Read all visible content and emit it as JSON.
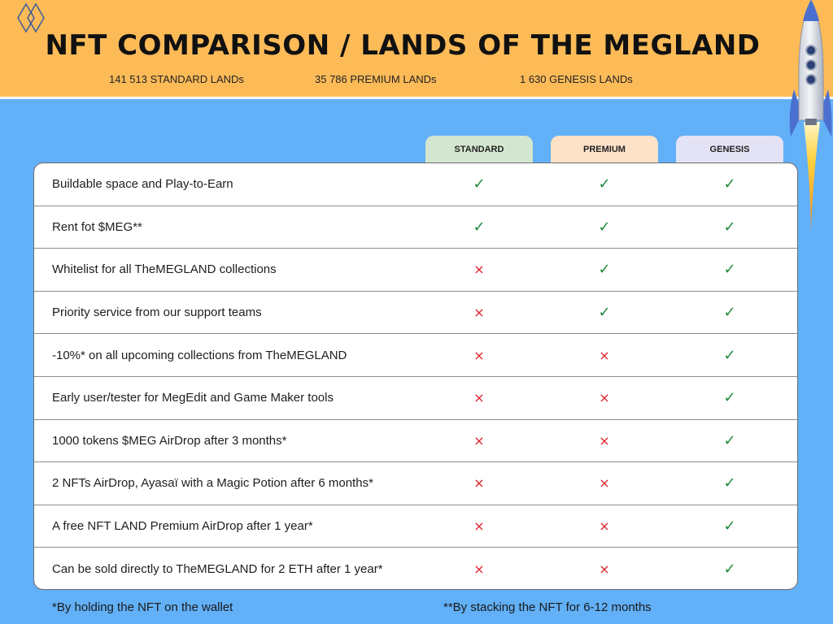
{
  "header": {
    "title": "NFT COMPARISON / LANDS OF THE MEGLAND",
    "counts": {
      "standard": "141 513 STANDARD LANDs",
      "premium": "35 786 PREMIUM LANDs",
      "genesis": "1 630 GENESIS LANDs"
    },
    "logo_icon": "double-diamond-icon",
    "rocket_icon": "rocket-icon"
  },
  "columns": {
    "standard": "STANDARD",
    "premium": "PREMIUM",
    "genesis": "GENESIS"
  },
  "marks": {
    "yes": "✓",
    "no": "×"
  },
  "rows": [
    {
      "feature": "Buildable space and Play-to-Earn",
      "standard": true,
      "premium": true,
      "genesis": true
    },
    {
      "feature": "Rent fot $MEG**",
      "standard": true,
      "premium": true,
      "genesis": true
    },
    {
      "feature": "Whitelist for all TheMEGLAND collections",
      "standard": false,
      "premium": true,
      "genesis": true
    },
    {
      "feature": "Priority service from our support teams",
      "standard": false,
      "premium": true,
      "genesis": true
    },
    {
      "feature": "-10%* on all upcoming collections from TheMEGLAND",
      "standard": false,
      "premium": false,
      "genesis": true
    },
    {
      "feature": "Early user/tester for MegEdit and Game Maker tools",
      "standard": false,
      "premium": false,
      "genesis": true
    },
    {
      "feature": "1000 tokens $MEG AirDrop after 3 months*",
      "standard": false,
      "premium": false,
      "genesis": true
    },
    {
      "feature": "2 NFTs AirDrop, Ayasaï with a Magic Potion after 6 months*",
      "standard": false,
      "premium": false,
      "genesis": true
    },
    {
      "feature": "A free NFT LAND Premium AirDrop after 1 year*",
      "standard": false,
      "premium": false,
      "genesis": true
    },
    {
      "feature": "Can be sold directly to TheMEGLAND for 2 ETH after 1 year*",
      "standard": false,
      "premium": false,
      "genesis": true
    }
  ],
  "footnotes": {
    "holding": "*By holding the NFT on the wallet",
    "stacking": "**By stacking the NFT for 6-12 months"
  },
  "colors": {
    "header_bg": "#fdbb58",
    "page_bg": "#62b0f7",
    "standard_tab": "#d3e6cf",
    "premium_tab": "#fde2c7",
    "genesis_tab": "#e3e3f5",
    "check": "#1f8a3a",
    "cross": "#e0202a"
  }
}
